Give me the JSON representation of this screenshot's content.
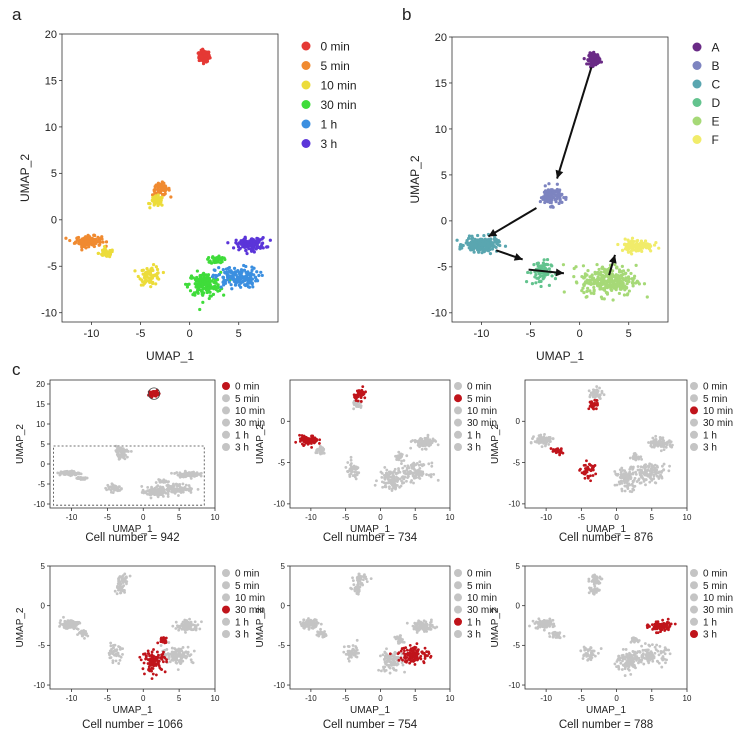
{
  "panel_letters": {
    "a": "a",
    "b": "b",
    "c": "c"
  },
  "colors": {
    "time": [
      "#e53935",
      "#f08a30",
      "#ecdc3a",
      "#3fdc3a",
      "#3b8fe0",
      "#5b35d9"
    ],
    "cluster": [
      "#6a2b86",
      "#7d84c0",
      "#5aa6b0",
      "#63c38e",
      "#a6d977",
      "#f1ec6a"
    ],
    "highlight": "#c0141b",
    "grey": "#c4c4c4"
  },
  "chart_data": [
    {
      "id": "a",
      "type": "scatter",
      "title": "",
      "xlabel": "UMAP_1",
      "ylabel": "UMAP_2",
      "xlim": [
        -13,
        9
      ],
      "ylim": [
        -11,
        20
      ],
      "xticks": [
        -10,
        -5,
        0,
        5
      ],
      "yticks": [
        -10,
        -5,
        0,
        5,
        10,
        15,
        20
      ],
      "legend": {
        "position": "right",
        "labels": [
          "0 min",
          "5 min",
          "10 min",
          "30 min",
          "1 h",
          "3 h"
        ]
      },
      "clusters": [
        {
          "label": "0 min",
          "cx": 1.5,
          "cy": 17.6,
          "sx": 0.5,
          "sy": 0.55,
          "n": 140
        },
        {
          "label": "5 min",
          "cx": -10.3,
          "cy": -2.3,
          "sx": 1.2,
          "sy": 0.5,
          "n": 150
        },
        {
          "label": "5 min",
          "cx": -2.9,
          "cy": 3.3,
          "sx": 0.8,
          "sy": 0.6,
          "n": 60
        },
        {
          "label": "10 min",
          "cx": -8.5,
          "cy": -3.6,
          "sx": 0.7,
          "sy": 0.4,
          "n": 50
        },
        {
          "label": "10 min",
          "cx": -3.3,
          "cy": 2.0,
          "sx": 0.6,
          "sy": 0.5,
          "n": 50
        },
        {
          "label": "10 min",
          "cx": -4.0,
          "cy": -6.0,
          "sx": 1.0,
          "sy": 0.9,
          "n": 70
        },
        {
          "label": "30 min",
          "cx": 1.5,
          "cy": -7.0,
          "sx": 1.5,
          "sy": 1.2,
          "n": 160
        },
        {
          "label": "30 min",
          "cx": 2.8,
          "cy": -4.3,
          "sx": 0.6,
          "sy": 0.4,
          "n": 40
        },
        {
          "label": "1 h",
          "cx": 4.8,
          "cy": -6.2,
          "sx": 2.0,
          "sy": 1.0,
          "n": 160
        },
        {
          "label": "3 h",
          "cx": 6.2,
          "cy": -2.6,
          "sx": 1.4,
          "sy": 0.6,
          "n": 130
        }
      ]
    },
    {
      "id": "b",
      "type": "scatter",
      "title": "",
      "xlabel": "UMAP_1",
      "ylabel": "UMAP_2",
      "xlim": [
        -13,
        9
      ],
      "ylim": [
        -11,
        20
      ],
      "xticks": [
        -10,
        -5,
        0,
        5
      ],
      "yticks": [
        -10,
        -5,
        0,
        5,
        10,
        15,
        20
      ],
      "legend": {
        "position": "right",
        "labels": [
          "A",
          "B",
          "C",
          "D",
          "E",
          "F"
        ]
      },
      "clusters": [
        {
          "label": "A",
          "cx": 1.5,
          "cy": 17.6,
          "sx": 0.5,
          "sy": 0.55,
          "n": 140
        },
        {
          "label": "B",
          "cx": -2.9,
          "cy": 2.7,
          "sx": 1.0,
          "sy": 0.9,
          "n": 110
        },
        {
          "label": "C",
          "cx": -10.0,
          "cy": -2.6,
          "sx": 1.5,
          "sy": 0.7,
          "n": 200
        },
        {
          "label": "D",
          "cx": -4.0,
          "cy": -5.6,
          "sx": 1.0,
          "sy": 1.2,
          "n": 70
        },
        {
          "label": "E",
          "cx": 3.0,
          "cy": -6.5,
          "sx": 2.5,
          "sy": 1.5,
          "n": 280
        },
        {
          "label": "F",
          "cx": 5.8,
          "cy": -2.7,
          "sx": 1.5,
          "sy": 0.6,
          "n": 120
        }
      ],
      "arrows": [
        {
          "from": [
            1.2,
            16.7
          ],
          "to": [
            -2.3,
            4.6
          ]
        },
        {
          "from": [
            -4.4,
            1.4
          ],
          "to": [
            -9.3,
            -1.7
          ]
        },
        {
          "from": [
            -8.5,
            -3.2
          ],
          "to": [
            -5.8,
            -4.2
          ]
        },
        {
          "from": [
            -5.2,
            -5.3
          ],
          "to": [
            -1.6,
            -5.7
          ]
        },
        {
          "from": [
            3.0,
            -5.9
          ],
          "to": [
            3.6,
            -3.7
          ]
        }
      ]
    },
    {
      "id": "c1",
      "type": "scatter",
      "highlight": "0 min",
      "xlabel": "UMAP_1",
      "ylabel": "UMAP_2",
      "xlim": [
        -13,
        10
      ],
      "ylim": [
        -11,
        21
      ],
      "xticks": [
        -10,
        -5,
        0,
        5,
        10
      ],
      "yticks": [
        -10,
        -5,
        0,
        5,
        10,
        15,
        20
      ],
      "legend": {
        "position": "right",
        "labels": [
          "0 min",
          "5 min",
          "10 min",
          "30 min",
          "1 h",
          "3 h"
        ]
      },
      "dashed_box": {
        "x": [
          -12.5,
          8.5
        ],
        "y": [
          -10.3,
          4.5
        ]
      },
      "circle": {
        "cx": 1.5,
        "cy": 17.6,
        "r": 0.8
      },
      "caption": "Cell number = 942"
    },
    {
      "id": "c2",
      "type": "scatter",
      "highlight": "5 min",
      "xlabel": "UMAP_1",
      "ylabel": "UMAP_2",
      "xlim": [
        -13,
        10
      ],
      "ylim": [
        -10.5,
        5
      ],
      "xticks": [
        -10,
        -5,
        0,
        5,
        10
      ],
      "yticks": [
        -10,
        -5,
        0
      ],
      "legend": {
        "position": "right",
        "labels": [
          "0 min",
          "5 min",
          "10 min",
          "30 min",
          "1 h",
          "3 h"
        ]
      },
      "caption": "Cell number = 734"
    },
    {
      "id": "c3",
      "type": "scatter",
      "highlight": "10 min",
      "xlabel": "UMAP_1",
      "ylabel": "UMAP_2",
      "xlim": [
        -13,
        10
      ],
      "ylim": [
        -10.5,
        5
      ],
      "xticks": [
        -10,
        -5,
        0,
        5,
        10
      ],
      "yticks": [
        -10,
        -5,
        0
      ],
      "legend": {
        "position": "right",
        "labels": [
          "0 min",
          "5 min",
          "10 min",
          "30 min",
          "1 h",
          "3 h"
        ]
      },
      "caption": "Cell number = 876"
    },
    {
      "id": "c4",
      "type": "scatter",
      "highlight": "30 min",
      "xlabel": "UMAP_1",
      "ylabel": "UMAP_2",
      "xlim": [
        -13,
        10
      ],
      "ylim": [
        -10.5,
        5
      ],
      "xticks": [
        -10,
        -5,
        0,
        5,
        10
      ],
      "yticks": [
        -10,
        -5,
        0,
        5
      ],
      "legend": {
        "position": "right",
        "labels": [
          "0 min",
          "5 min",
          "10 min",
          "30 min",
          "1 h",
          "3 h"
        ]
      },
      "caption": "Cell number = 1066"
    },
    {
      "id": "c5",
      "type": "scatter",
      "highlight": "1 h",
      "xlabel": "UMAP_1",
      "ylabel": "UMAP_2",
      "xlim": [
        -13,
        10
      ],
      "ylim": [
        -10.5,
        5
      ],
      "xticks": [
        -10,
        -5,
        0,
        5,
        10
      ],
      "yticks": [
        -10,
        -5,
        0,
        5
      ],
      "legend": {
        "position": "right",
        "labels": [
          "0 min",
          "5 min",
          "10 min",
          "30 min",
          "1 h",
          "3 h"
        ]
      },
      "caption": "Cell number = 754"
    },
    {
      "id": "c6",
      "type": "scatter",
      "highlight": "3 h",
      "xlabel": "UMAP_1",
      "ylabel": "UMAP_2",
      "xlim": [
        -13,
        10
      ],
      "ylim": [
        -10.5,
        5
      ],
      "xticks": [
        -10,
        -5,
        0,
        5,
        10
      ],
      "yticks": [
        -10,
        -5,
        0,
        5
      ],
      "legend": {
        "position": "right",
        "labels": [
          "0 min",
          "5 min",
          "10 min",
          "30 min",
          "1 h",
          "3 h"
        ]
      },
      "caption": "Cell number = 788"
    }
  ],
  "lower_clusters": [
    {
      "label": "5 min",
      "cx": -10.3,
      "cy": -2.3,
      "sx": 1.2,
      "sy": 0.5,
      "n": 90
    },
    {
      "label": "5 min",
      "cx": -2.9,
      "cy": 3.3,
      "sx": 0.8,
      "sy": 0.6,
      "n": 40
    },
    {
      "label": "10 min",
      "cx": -8.5,
      "cy": -3.6,
      "sx": 0.7,
      "sy": 0.4,
      "n": 30
    },
    {
      "label": "10 min",
      "cx": -3.3,
      "cy": 2.0,
      "sx": 0.6,
      "sy": 0.5,
      "n": 30
    },
    {
      "label": "10 min",
      "cx": -4.0,
      "cy": -6.0,
      "sx": 1.0,
      "sy": 0.9,
      "n": 45
    },
    {
      "label": "30 min",
      "cx": 1.5,
      "cy": -7.0,
      "sx": 1.5,
      "sy": 1.2,
      "n": 100
    },
    {
      "label": "30 min",
      "cx": 2.8,
      "cy": -4.3,
      "sx": 0.6,
      "sy": 0.4,
      "n": 25
    },
    {
      "label": "1 h",
      "cx": 4.8,
      "cy": -6.2,
      "sx": 2.0,
      "sy": 1.0,
      "n": 110
    },
    {
      "label": "3 h",
      "cx": 6.2,
      "cy": -2.6,
      "sx": 1.4,
      "sy": 0.6,
      "n": 90
    }
  ]
}
